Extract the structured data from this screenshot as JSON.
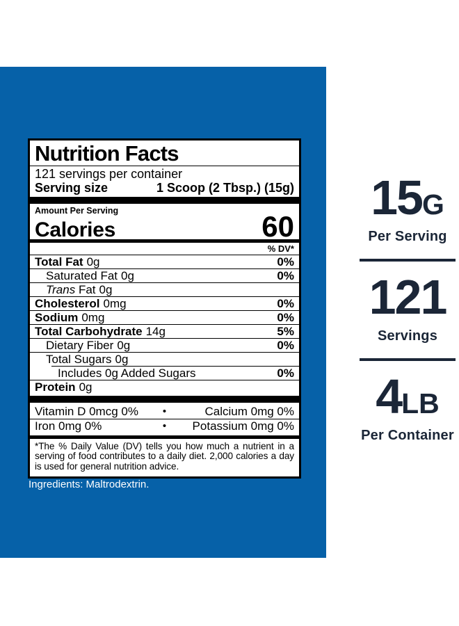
{
  "colors": {
    "brand_blue": "#0661A8",
    "navy": "#1B2637"
  },
  "nutrition_label": {
    "title": "Nutrition Facts",
    "servings_line": "121 servings per container",
    "serving_size": {
      "label": "Serving size",
      "value": "1 Scoop (2 Tbsp.) (15g)"
    },
    "amount_per_serving": "Amount Per Serving",
    "calories": {
      "label": "Calories",
      "value": "60"
    },
    "dv_header": "% DV*",
    "rows": [
      {
        "name": "Total Fat",
        "amount": "0g",
        "dv": "0%"
      },
      {
        "name": "Saturated Fat",
        "amount": "0g",
        "dv": "0%"
      },
      {
        "italic": "Trans",
        "name": "Fat",
        "amount": "0g",
        "dv": ""
      },
      {
        "name": "Cholesterol",
        "amount": "0mg",
        "dv": "0%"
      },
      {
        "name": "Sodium",
        "amount": "0mg",
        "dv": "0%"
      },
      {
        "name": "Total Carbohydrate",
        "amount": "14g",
        "dv": "5%"
      },
      {
        "name": "Dietary Fiber",
        "amount": "0g",
        "dv": "0%"
      },
      {
        "name": "Total Sugars",
        "amount": "0g",
        "dv": ""
      },
      {
        "name": "Includes 0g Added Sugars",
        "amount": "",
        "dv": "0%"
      },
      {
        "name": "Protein",
        "amount": "0g",
        "dv": ""
      }
    ],
    "micronutrients": {
      "bullet": "•",
      "row1": {
        "left": "Vitamin D 0mcg 0%",
        "right": "Calcium 0mg 0%"
      },
      "row2": {
        "left": "Iron 0mg 0%",
        "right": "Potassium 0mg 0%"
      }
    },
    "footnote": "*The % Daily Value (DV) tells you how much a nutrient in a serving of food contributes to a daily diet. 2,000 calories a day is used for general nutrition advice."
  },
  "ingredients_line": "Ingredients: Maltrodextrin.",
  "stats": {
    "per_serving": {
      "value": "15",
      "unit": "G",
      "label": "Per Serving"
    },
    "servings": {
      "value": "121",
      "unit": "",
      "label": "Servings"
    },
    "per_container": {
      "value": "4",
      "unit": "LB",
      "label": "Per Container"
    }
  }
}
